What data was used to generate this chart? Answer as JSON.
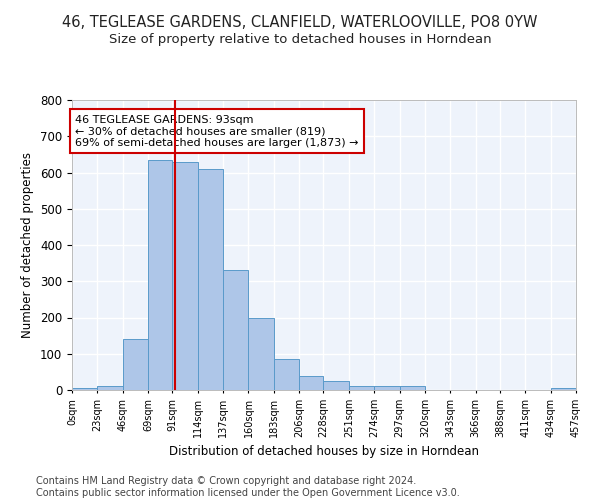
{
  "title": "46, TEGLEASE GARDENS, CLANFIELD, WATERLOOVILLE, PO8 0YW",
  "subtitle": "Size of property relative to detached houses in Horndean",
  "xlabel": "Distribution of detached houses by size in Horndean",
  "ylabel": "Number of detached properties",
  "bar_values": [
    5,
    10,
    140,
    635,
    630,
    610,
    330,
    200,
    85,
    40,
    25,
    10,
    10,
    10,
    0,
    0,
    0,
    0,
    0,
    5
  ],
  "bin_edges": [
    0,
    23,
    46,
    69,
    91,
    114,
    137,
    160,
    183,
    206,
    228,
    251,
    274,
    297,
    320,
    343,
    366,
    388,
    411,
    434,
    457
  ],
  "tick_labels": [
    "0sqm",
    "23sqm",
    "46sqm",
    "69sqm",
    "91sqm",
    "114sqm",
    "137sqm",
    "160sqm",
    "183sqm",
    "206sqm",
    "228sqm",
    "251sqm",
    "274sqm",
    "297sqm",
    "320sqm",
    "343sqm",
    "366sqm",
    "388sqm",
    "411sqm",
    "434sqm",
    "457sqm"
  ],
  "bar_color": "#aec6e8",
  "bar_edge_color": "#5a9aca",
  "property_size": 93,
  "vline_color": "#cc0000",
  "annotation_text": "46 TEGLEASE GARDENS: 93sqm\n← 30% of detached houses are smaller (819)\n69% of semi-detached houses are larger (1,873) →",
  "annotation_box_color": "#cc0000",
  "ylim": [
    0,
    800
  ],
  "yticks": [
    0,
    100,
    200,
    300,
    400,
    500,
    600,
    700,
    800
  ],
  "background_color": "#eef3fb",
  "grid_color": "#ffffff",
  "footer_text": "Contains HM Land Registry data © Crown copyright and database right 2024.\nContains public sector information licensed under the Open Government Licence v3.0.",
  "title_fontsize": 10.5,
  "subtitle_fontsize": 9.5,
  "annotation_fontsize": 8,
  "footer_fontsize": 7
}
